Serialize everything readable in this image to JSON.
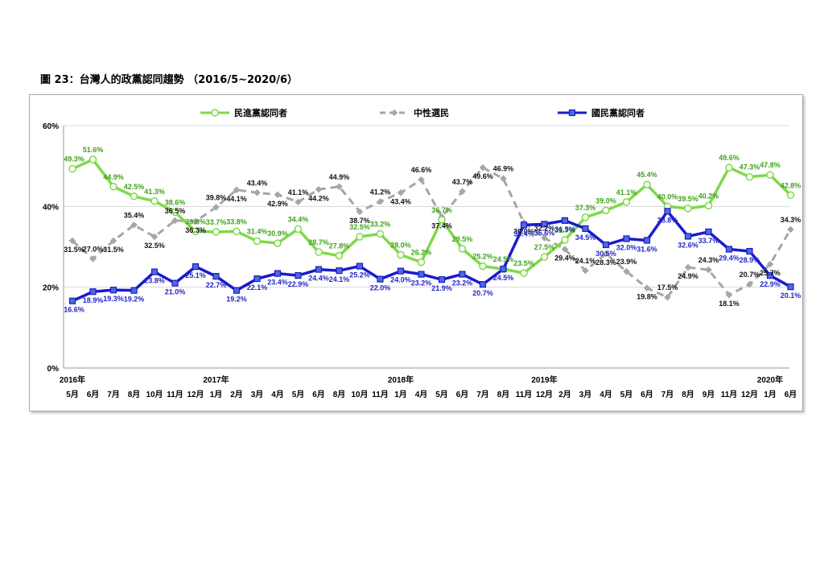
{
  "figure_title": "圖 23：台灣人的政黨認同趨勢 （2016/5~2020/6）",
  "chart_data": {
    "type": "line",
    "ylim": [
      0,
      60
    ],
    "yticks": [
      "0%",
      "20%",
      "40%",
      "60%"
    ],
    "categories": [
      "5月",
      "6月",
      "7月",
      "8月",
      "10月",
      "11月",
      "12月",
      "1月",
      "2月",
      "3月",
      "4月",
      "5月",
      "6月",
      "8月",
      "10月",
      "11月",
      "1月",
      "4月",
      "5月",
      "6月",
      "7月",
      "8月",
      "11月",
      "12月",
      "2月",
      "3月",
      "4月",
      "5月",
      "6月",
      "7月",
      "8月",
      "9月",
      "11月",
      "12月",
      "1月",
      "6月"
    ],
    "years": [
      {
        "label": "2016年",
        "index": 0
      },
      {
        "label": "2017年",
        "index": 7
      },
      {
        "label": "2018年",
        "index": 16
      },
      {
        "label": "2019年",
        "index": 23
      },
      {
        "label": "2020年",
        "index": 34
      }
    ],
    "series": [
      {
        "name": "民進黨認同者",
        "color": "#7fd94a",
        "marker": "circle",
        "values": [
          49.3,
          51.6,
          44.9,
          42.5,
          41.3,
          38.6,
          33.8,
          33.7,
          33.8,
          31.4,
          30.9,
          34.4,
          28.7,
          27.8,
          32.5,
          33.2,
          28.0,
          26.2,
          36.7,
          29.5,
          25.2,
          24.5,
          23.5,
          27.5,
          31.7,
          37.3,
          39.0,
          41.1,
          45.4,
          40.0,
          39.5,
          40.2,
          49.6,
          47.3,
          47.8,
          42.8
        ],
        "labels": [
          "49.3%",
          "51.6%",
          "44.9%",
          "42.5%",
          "41.3%",
          "38.6%",
          "33.8%",
          "33.7%",
          "33.8%",
          "31.4%",
          "30.9%",
          "34.4%",
          "28.7%",
          "27.8%",
          "32.5%",
          "33.2%",
          "28.0%",
          "26.2%",
          "36.7%",
          "29.5%",
          "25.2%",
          "24.5%",
          "23.5%",
          "27.5%",
          "31.7%",
          "37.3%",
          "39.0%",
          "41.1%",
          "45.4%",
          "40.0%",
          "39.5%",
          "40.2%",
          "49.6%",
          "47.3%",
          "47.8%",
          "42.8%"
        ]
      },
      {
        "name": "中性選民",
        "color": "#a6a6a6",
        "marker": "diamond",
        "values": [
          31.5,
          27.0,
          31.5,
          35.4,
          32.5,
          36.5,
          36.3,
          39.8,
          44.1,
          43.4,
          42.9,
          41.1,
          44.2,
          44.9,
          38.7,
          41.2,
          43.4,
          46.6,
          37.4,
          43.7,
          49.6,
          46.9,
          36.0,
          32.2,
          29.4,
          24.1,
          28.3,
          23.9,
          19.8,
          17.5,
          24.9,
          24.3,
          18.1,
          20.7,
          25.7,
          34.3
        ],
        "labels": [
          "31.5%",
          "27.0%",
          "31.5%",
          "35.4%",
          "32.5%",
          "36.5%",
          "36.3%",
          "39.8%",
          "44.1%",
          "43.4%",
          "42.9%",
          "41.1%",
          "44.2%",
          "44.9%",
          "38.7%",
          "41.2%",
          "43.4%",
          "46.6%",
          "37.4%",
          "43.7%",
          "49.6%",
          "46.9%",
          "36.0%",
          "32.2%",
          "29.4%",
          "24.1%",
          "28.3%",
          "23.9%",
          "19.8%",
          "17.5%",
          "24.9%",
          "24.3%",
          "18.1%",
          "20.7%",
          "25.7%",
          "34.3%"
        ]
      },
      {
        "name": "國民黨認同者",
        "color": "#1a1acc",
        "marker": "square",
        "values": [
          16.6,
          18.9,
          19.3,
          19.2,
          23.8,
          21.0,
          25.1,
          22.7,
          19.2,
          22.1,
          23.4,
          22.9,
          24.4,
          24.1,
          25.2,
          22.0,
          24.0,
          23.2,
          21.9,
          23.2,
          20.7,
          24.5,
          35.4,
          35.6,
          36.5,
          34.5,
          30.5,
          32.0,
          31.6,
          38.8,
          32.6,
          33.7,
          29.4,
          28.9,
          22.9,
          20.1
        ],
        "labels": [
          "16.6%",
          "18.9%",
          "19.3%",
          "19.2%",
          "23.8%",
          "21.0%",
          "25.1%",
          "22.7%",
          "19.2%",
          "22.1%",
          "23.4%",
          "22.9%",
          "24.4%",
          "24.1%",
          "25.2%",
          "22.0%",
          "24.0%",
          "23.2%",
          "21.9%",
          "23.2%",
          "20.7%",
          "24.5%",
          "35.4%",
          "35.6%",
          "36.5%",
          "34.5%",
          "30.5%",
          "32.0%",
          "31.6%",
          "38.8%",
          "32.6%",
          "33.7%",
          "29.4%",
          "28.9%",
          "22.9%",
          "20.1%"
        ]
      }
    ]
  }
}
